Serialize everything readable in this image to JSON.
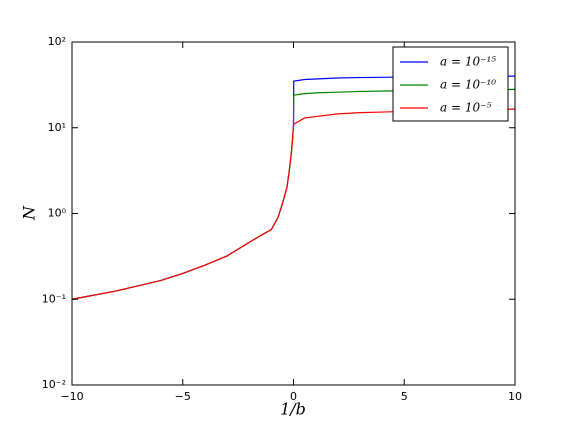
{
  "chart_data": {
    "type": "line",
    "x_label": "1/b",
    "y_label": "N",
    "x": [
      -10,
      -8,
      -6,
      -5,
      -4,
      -3,
      -2,
      -1.5,
      -1,
      -0.7,
      -0.5,
      -0.3,
      -0.2,
      -0.1,
      -0.05,
      -0.02,
      0,
      0.01,
      0.5,
      1,
      2,
      3,
      5,
      7,
      10
    ],
    "series": [
      {
        "name": "a = 10⁻¹⁵",
        "color": "#0000ff",
        "values": [
          0.1,
          0.125,
          0.165,
          0.2,
          0.25,
          0.32,
          0.46,
          0.55,
          0.65,
          0.9,
          1.3,
          2,
          3,
          5,
          7,
          9,
          10.5,
          35,
          36.5,
          37,
          38,
          38.5,
          39,
          39.5,
          40
        ]
      },
      {
        "name": "a = 10⁻¹⁰",
        "color": "#008000",
        "values": [
          0.1,
          0.125,
          0.165,
          0.2,
          0.25,
          0.32,
          0.46,
          0.55,
          0.65,
          0.9,
          1.3,
          2,
          3,
          5,
          7,
          9,
          10.5,
          24,
          25,
          25.5,
          26,
          26.5,
          27,
          27.5,
          28
        ]
      },
      {
        "name": "a = 10⁻⁵",
        "color": "#ff0000",
        "values": [
          0.1,
          0.125,
          0.165,
          0.2,
          0.25,
          0.32,
          0.46,
          0.55,
          0.65,
          0.9,
          1.3,
          2,
          3,
          5,
          7,
          9,
          10.5,
          11,
          13,
          13.5,
          14.5,
          15,
          15.5,
          16,
          16.5
        ]
      }
    ],
    "xlim": [
      -10,
      10
    ],
    "xticks": [
      {
        "value": -10,
        "label": "−10"
      },
      {
        "value": -5,
        "label": "−5"
      },
      0,
      5,
      10
    ],
    "ylim": [
      0.01,
      100
    ],
    "log_y": true,
    "yticks": [
      {
        "value": 0.01,
        "label": "10⁻²"
      },
      {
        "value": 0.1,
        "label": "10⁻¹"
      },
      {
        "value": 1,
        "label": "10⁰"
      },
      {
        "value": 10,
        "label": "10¹"
      },
      {
        "value": 100,
        "label": "10²"
      }
    ],
    "legend": "upper right"
  }
}
